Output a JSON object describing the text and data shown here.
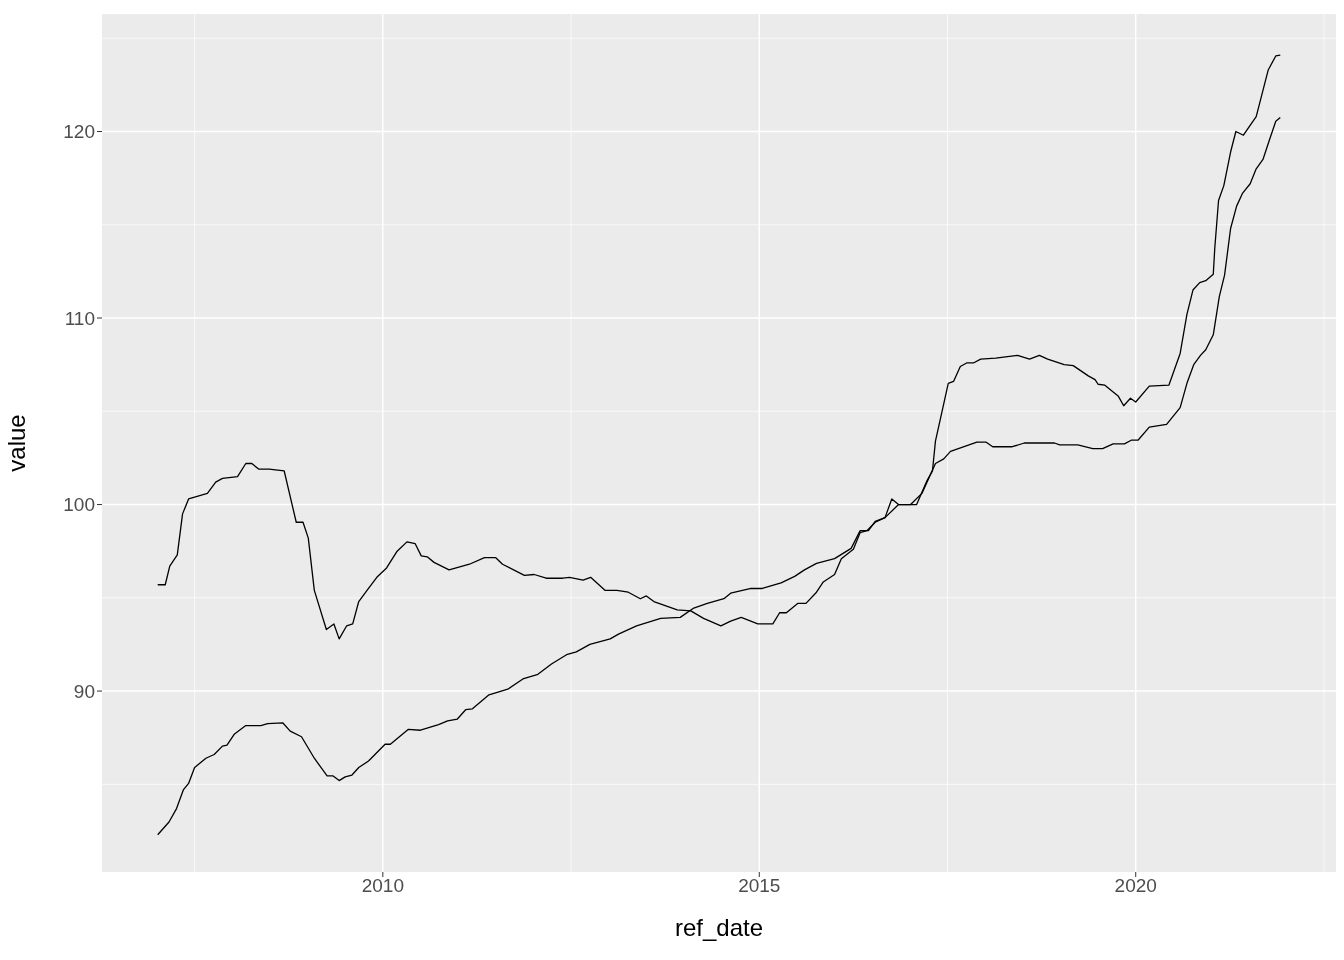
{
  "chart_data": {
    "type": "line",
    "xlabel": "ref_date",
    "ylabel": "value",
    "xlim": [
      2006.27,
      2022.66
    ],
    "ylim": [
      80.3,
      126.3
    ],
    "xticks": [
      2010,
      2015,
      2020
    ],
    "yticks": [
      90,
      100,
      110,
      120
    ],
    "grid": true,
    "legend": false,
    "marker": "none",
    "line_style": "solid",
    "series": [
      {
        "color": "#000000",
        "x": [
          2007.01,
          2007.11,
          2007.17,
          2007.27,
          2007.34,
          2007.42,
          2007.67,
          2007.78,
          2007.87,
          2008.07,
          2008.18,
          2008.26,
          2008.35,
          2008.49,
          2008.69,
          2008.85,
          2008.94,
          2009.01,
          2009.09,
          2009.25,
          2009.35,
          2009.42,
          2009.52,
          2009.6,
          2009.68,
          2009.79,
          2009.92,
          2010.05,
          2010.19,
          2010.32,
          2010.43,
          2010.51,
          2010.59,
          2010.68,
          2010.88,
          2011.15,
          2011.35,
          2011.5,
          2011.59,
          2011.88,
          2012.01,
          2012.17,
          2012.39,
          2012.48,
          2012.66,
          2012.76,
          2012.95,
          2013.11,
          2013.26,
          2013.42,
          2013.5,
          2013.6,
          2013.91,
          2014.09,
          2014.26,
          2014.49,
          2014.62,
          2014.76,
          2014.98,
          2015.18,
          2015.27,
          2015.36,
          2015.51,
          2015.62,
          2015.76,
          2015.85,
          2016.0,
          2016.09,
          2016.25,
          2016.34,
          2016.43,
          2016.54,
          2016.67,
          2016.85,
          2017.09,
          2017.23,
          2017.3,
          2017.34,
          2017.51,
          2017.58,
          2017.67,
          2017.76,
          2017.85,
          2017.94,
          2018.14,
          2018.43,
          2018.59,
          2018.72,
          2018.83,
          2019.05,
          2019.17,
          2019.37,
          2019.46,
          2019.5,
          2019.59,
          2019.77,
          2019.84,
          2019.93,
          2020.0,
          2020.18,
          2020.44,
          2020.59,
          2020.68,
          2020.76,
          2020.85,
          2020.93,
          2021.03,
          2021.05,
          2021.1,
          2021.17,
          2021.26,
          2021.33,
          2021.43,
          2021.6,
          2021.76,
          2021.86,
          2021.92
        ],
        "values": [
          95.7,
          95.7,
          96.7,
          97.3,
          99.5,
          100.3,
          100.6,
          101.2,
          101.4,
          101.5,
          102.2,
          102.2,
          101.9,
          101.9,
          101.8,
          99.05,
          99.05,
          98.2,
          95.4,
          93.3,
          93.6,
          92.8,
          93.5,
          93.6,
          94.8,
          95.4,
          96.1,
          96.6,
          97.5,
          98.0,
          97.9,
          97.25,
          97.2,
          96.9,
          96.5,
          96.8,
          97.15,
          97.15,
          96.8,
          96.2,
          96.25,
          96.05,
          96.05,
          96.1,
          95.95,
          96.1,
          95.4,
          95.4,
          95.3,
          94.95,
          95.1,
          94.8,
          94.35,
          94.3,
          93.9,
          93.5,
          93.75,
          93.95,
          93.6,
          93.6,
          94.2,
          94.2,
          94.7,
          94.7,
          95.3,
          95.85,
          96.25,
          97.1,
          97.6,
          98.5,
          98.6,
          99.05,
          99.3,
          100.0,
          100.0,
          101.3,
          101.8,
          103.4,
          106.5,
          106.6,
          107.4,
          107.6,
          107.6,
          107.8,
          107.85,
          108.0,
          107.8,
          108.0,
          107.8,
          107.5,
          107.45,
          106.9,
          106.7,
          106.45,
          106.4,
          105.8,
          105.3,
          105.7,
          105.5,
          106.35,
          106.4,
          108.1,
          110.2,
          111.5,
          111.9,
          112.0,
          112.35,
          113.75,
          116.3,
          117.1,
          118.9,
          120.0,
          119.8,
          120.8,
          123.3,
          124.05,
          124.1
        ]
      },
      {
        "color": "#000000",
        "x": [
          2007.01,
          2007.16,
          2007.26,
          2007.35,
          2007.42,
          2007.5,
          2007.65,
          2007.76,
          2007.87,
          2007.93,
          2008.03,
          2008.18,
          2008.38,
          2008.47,
          2008.67,
          2008.77,
          2008.92,
          2009.09,
          2009.26,
          2009.34,
          2009.42,
          2009.5,
          2009.59,
          2009.68,
          2009.81,
          2010.03,
          2010.1,
          2010.34,
          2010.5,
          2010.74,
          2010.86,
          2010.99,
          2011.1,
          2011.19,
          2011.41,
          2011.66,
          2011.86,
          2012.06,
          2012.24,
          2012.44,
          2012.57,
          2012.75,
          2013.02,
          2013.13,
          2013.37,
          2013.69,
          2013.95,
          2014.13,
          2014.31,
          2014.53,
          2014.62,
          2014.89,
          2015.04,
          2015.29,
          2015.47,
          2015.6,
          2015.76,
          2016.0,
          2016.22,
          2016.34,
          2016.45,
          2016.54,
          2016.67,
          2016.76,
          2016.85,
          2017.01,
          2017.16,
          2017.34,
          2017.45,
          2017.54,
          2017.72,
          2017.89,
          2018.01,
          2018.1,
          2018.36,
          2018.52,
          2018.92,
          2018.99,
          2019.23,
          2019.43,
          2019.56,
          2019.7,
          2019.85,
          2019.94,
          2020.03,
          2020.18,
          2020.41,
          2020.59,
          2020.68,
          2020.77,
          2020.86,
          2020.93,
          2021.03,
          2021.11,
          2021.18,
          2021.26,
          2021.34,
          2021.42,
          2021.52,
          2021.6,
          2021.69,
          2021.78,
          2021.86,
          2021.92
        ],
        "values": [
          82.3,
          82.98,
          83.7,
          84.7,
          85.05,
          85.9,
          86.4,
          86.6,
          87.05,
          87.1,
          87.7,
          88.15,
          88.15,
          88.25,
          88.3,
          87.85,
          87.55,
          86.4,
          85.45,
          85.45,
          85.2,
          85.4,
          85.5,
          85.9,
          86.25,
          87.15,
          87.15,
          87.95,
          87.9,
          88.2,
          88.4,
          88.5,
          89.0,
          89.05,
          89.8,
          90.1,
          90.65,
          90.9,
          91.45,
          91.95,
          92.1,
          92.5,
          92.8,
          93.05,
          93.5,
          93.9,
          93.95,
          94.45,
          94.7,
          94.95,
          95.25,
          95.5,
          95.5,
          95.8,
          96.15,
          96.5,
          96.85,
          97.1,
          97.65,
          98.6,
          98.6,
          99.1,
          99.3,
          100.3,
          100.0,
          100.0,
          100.6,
          102.2,
          102.45,
          102.85,
          103.1,
          103.35,
          103.35,
          103.1,
          103.1,
          103.3,
          103.3,
          103.2,
          103.2,
          103.0,
          103.0,
          103.25,
          103.25,
          103.45,
          103.45,
          104.15,
          104.3,
          105.2,
          106.5,
          107.5,
          108.0,
          108.3,
          109.1,
          111.15,
          112.3,
          114.8,
          116.0,
          116.7,
          117.2,
          118.0,
          118.5,
          119.6,
          120.55,
          120.75
        ]
      }
    ]
  }
}
